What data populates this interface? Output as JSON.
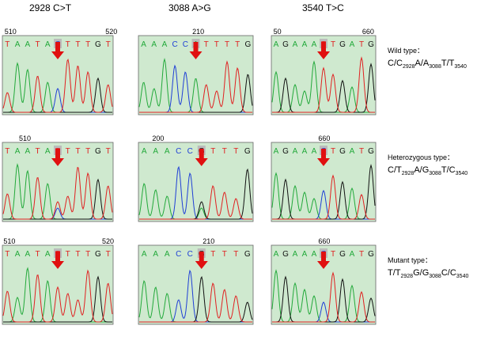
{
  "columns": [
    "2928 C>T",
    "3088 A>G",
    "3540 T>C"
  ],
  "rows": [
    {
      "label": "Wild type：",
      "genotype": [
        "C/C",
        "2928",
        "A/A",
        "3088",
        "T/T",
        "3540"
      ],
      "panels": [
        {
          "positions": [
            "510",
            "520"
          ],
          "bases": [
            "T",
            "A",
            "A",
            "T",
            "A",
            "C",
            "T",
            "T",
            "T",
            "G",
            "T"
          ]
        },
        {
          "positions": [
            "210"
          ],
          "bases": [
            "A",
            "A",
            "A",
            "C",
            "C",
            "A",
            "T",
            "T",
            "T",
            "T",
            "G"
          ]
        },
        {
          "positions": [
            "50",
            "660"
          ],
          "bases": [
            "A",
            "G",
            "A",
            "A",
            "A",
            "T",
            "T",
            "G",
            "A",
            "T",
            "G"
          ]
        }
      ]
    },
    {
      "label": "Heterozygous type：",
      "genotype": [
        "C/T",
        "2928",
        "A/G",
        "3088",
        "T/C",
        "3540"
      ],
      "panels": [
        {
          "positions": [
            "510"
          ],
          "bases": [
            "T",
            "A",
            "A",
            "T",
            "A",
            "T",
            "T",
            "T",
            "T",
            "G",
            "T"
          ]
        },
        {
          "positions": [
            "200"
          ],
          "bases": [
            "A",
            "A",
            "A",
            "C",
            "C",
            "G",
            "T",
            "T",
            "T",
            "G"
          ]
        },
        {
          "positions": [
            "660"
          ],
          "bases": [
            "A",
            "G",
            "A",
            "A",
            "A",
            "C",
            "T",
            "G",
            "A",
            "T",
            "G"
          ]
        }
      ]
    },
    {
      "label": "Mutant type：",
      "genotype": [
        "T/T",
        "2928",
        "G/G",
        "3088",
        "C/C",
        "3540"
      ],
      "panels": [
        {
          "positions": [
            "510",
            "520"
          ],
          "bases": [
            "T",
            "A",
            "A",
            "T",
            "A",
            "T",
            "T",
            "T",
            "T",
            "G",
            "T"
          ]
        },
        {
          "positions": [
            "210"
          ],
          "bases": [
            "A",
            "A",
            "A",
            "C",
            "C",
            "G",
            "T",
            "T",
            "T",
            "G"
          ]
        },
        {
          "positions": [
            "660"
          ],
          "bases": [
            "A",
            "G",
            "A",
            "A",
            "A",
            "C",
            "T",
            "G",
            "A",
            "T",
            "G"
          ]
        }
      ]
    }
  ]
}
